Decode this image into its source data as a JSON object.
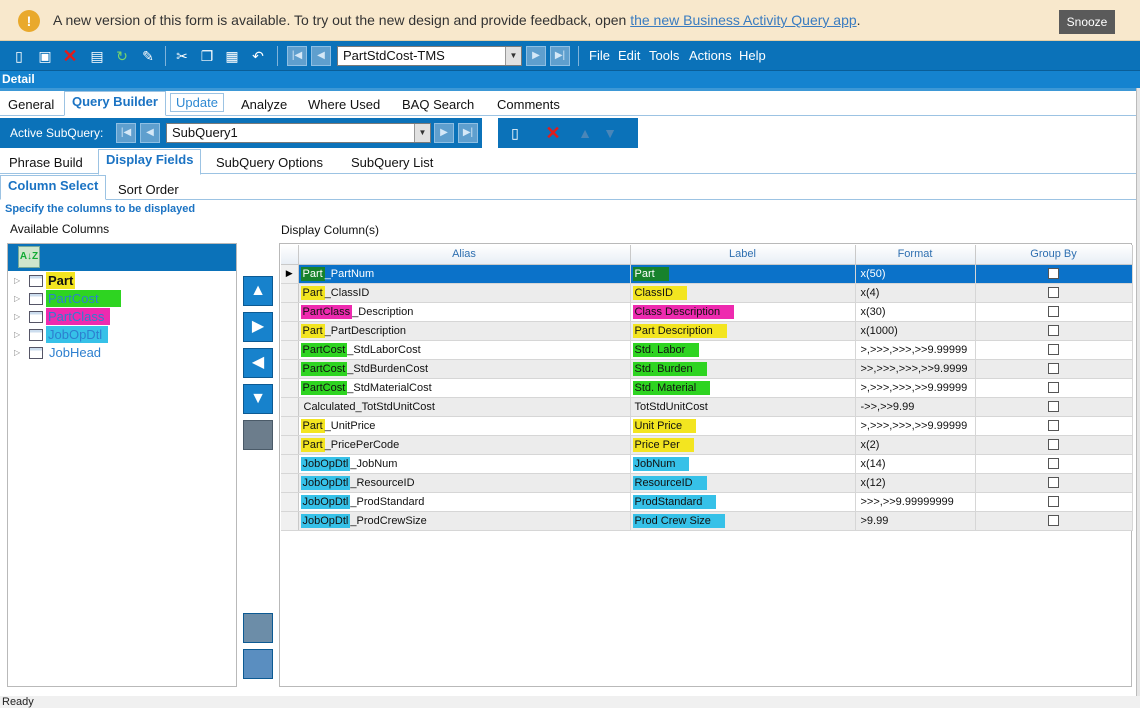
{
  "banner": {
    "message": "A new version of this form is available. To try out the new design and provide feedback, open",
    "link": "the new Business Activity Query app",
    "trail": ".",
    "snooze": "Snooze"
  },
  "toolbar": {
    "record": "PartStdCost-TMS",
    "menus": [
      "File",
      "Edit",
      "Tools",
      "Actions",
      "Help"
    ]
  },
  "detail_title": "Detail",
  "tabs_main": [
    "General",
    "Query Builder",
    "Update",
    "Analyze",
    "Where Used",
    "BAQ Search",
    "Comments"
  ],
  "subquery": {
    "label": "Active SubQuery:",
    "value": "SubQuery1"
  },
  "tabs_sub": [
    "Phrase Build",
    "Display Fields",
    "SubQuery Options",
    "SubQuery List"
  ],
  "tabs_field": [
    "Column Select",
    "Sort Order"
  ],
  "hint": "Specify the columns to be displayed",
  "available_label": "Available Columns",
  "display_label": "Display Column(s)",
  "tree": [
    "Part",
    "PartCost",
    "PartClass",
    "JobOpDtl",
    "JobHead"
  ],
  "grid": {
    "headers": [
      "Alias",
      "Label",
      "Format",
      "Group By"
    ],
    "rows": [
      {
        "alias_pre": "Part",
        "alias_post": "_PartNum",
        "label": "Part",
        "format": "x(50)"
      },
      {
        "alias_pre": "Part",
        "alias_post": "_ClassID",
        "label": "ClassID",
        "format": "x(4)"
      },
      {
        "alias_pre": "PartClass",
        "alias_post": "_Description",
        "label": "Class Description",
        "format": "x(30)"
      },
      {
        "alias_pre": "Part",
        "alias_post": "_PartDescription",
        "label": "Part Description",
        "format": "x(1000)"
      },
      {
        "alias_pre": "PartCost",
        "alias_post": "_StdLaborCost",
        "label": "Std. Labor",
        "format": ">,>>>,>>>,>>9.99999"
      },
      {
        "alias_pre": "PartCost",
        "alias_post": "_StdBurdenCost",
        "label": "Std. Burden",
        "format": ">>,>>>,>>>,>>9.9999"
      },
      {
        "alias_pre": "PartCost",
        "alias_post": "_StdMaterialCost",
        "label": "Std. Material",
        "format": ">,>>>,>>>,>>9.99999"
      },
      {
        "alias_pre": "",
        "alias_post": "Calculated_TotStdUnitCost",
        "label": "TotStdUnitCost",
        "format": "->>,>>9.99"
      },
      {
        "alias_pre": "Part",
        "alias_post": "_UnitPrice",
        "label": "Unit Price",
        "format": ">,>>>,>>>,>>9.99999"
      },
      {
        "alias_pre": "Part",
        "alias_post": "_PricePerCode",
        "label": "Price Per",
        "format": "x(2)"
      },
      {
        "alias_pre": "JobOpDtl",
        "alias_post": "_JobNum",
        "label": "JobNum",
        "format": "x(14)"
      },
      {
        "alias_pre": "JobOpDtl",
        "alias_post": "_ResourceID",
        "label": "ResourceID",
        "format": "x(12)"
      },
      {
        "alias_pre": "JobOpDtl",
        "alias_post": "_ProdStandard",
        "label": "ProdStandard",
        "format": ">>>,>>9.99999999"
      },
      {
        "alias_pre": "JobOpDtl",
        "alias_post": "_ProdCrewSize",
        "label": "Prod Crew Size",
        "format": ">9.99"
      }
    ]
  },
  "status": "Ready",
  "colors": {
    "accent": "#0b72b9",
    "selected": "#0b72c9",
    "yellow": "#f3e520",
    "green": "#2ed421",
    "pink": "#ee2aaf",
    "blue": "#36c1e8"
  }
}
